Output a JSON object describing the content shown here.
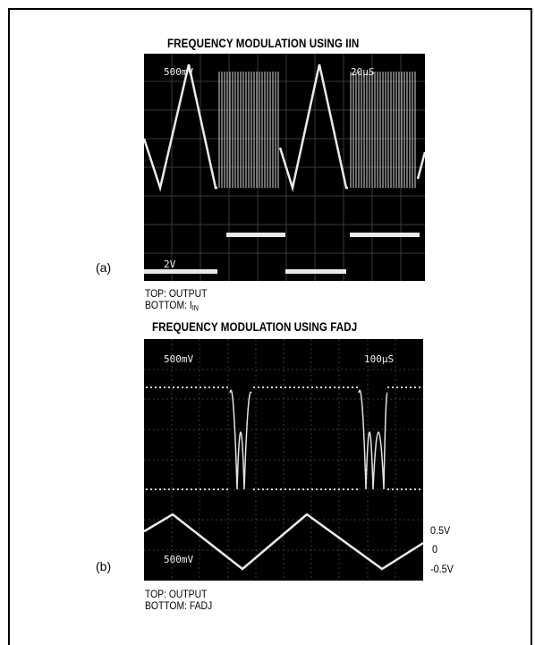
{
  "figure_a": {
    "title": "FREQUENCY MODULATION USING IIN",
    "label": "(a)",
    "top_left_readout": "500mV",
    "top_right_readout": "20µS",
    "bottom_left_readout": "2V",
    "caption_top": "TOP: OUTPUT",
    "caption_bottom_prefix": "BOTTOM: I",
    "caption_bottom_sub": "IN"
  },
  "figure_b": {
    "title": "FREQUENCY MODULATION USING FADJ",
    "label": "(b)",
    "top_left_readout": "500mV",
    "top_right_readout": "100µS",
    "bottom_left_readout": "500mV",
    "voltage_labels": [
      "0.5V",
      "0",
      "-0.5V"
    ],
    "caption_top": "TOP: OUTPUT",
    "caption_bottom": "BOTTOM: FADJ"
  }
}
